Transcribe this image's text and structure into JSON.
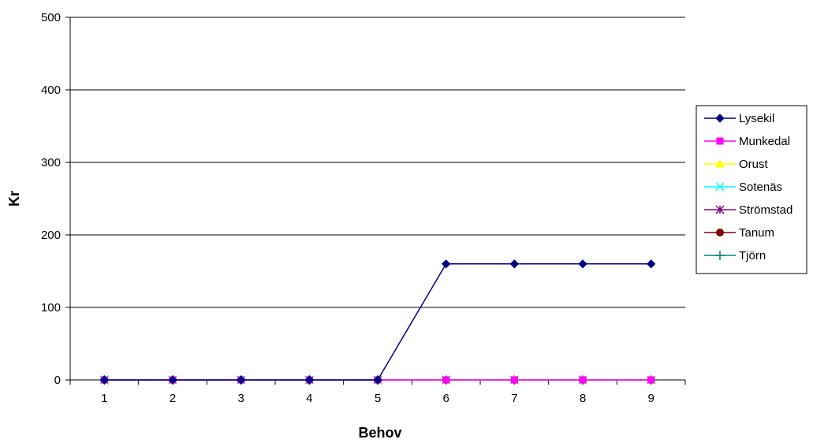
{
  "chart_data": {
    "type": "line",
    "title": "",
    "xlabel": "Behov",
    "ylabel": "Kr",
    "categories": [
      "1",
      "2",
      "3",
      "4",
      "5",
      "6",
      "7",
      "8",
      "9"
    ],
    "ylim": [
      0,
      500
    ],
    "yticks": [
      0,
      100,
      200,
      300,
      400,
      500
    ],
    "grid": "horizontal",
    "legend_position": "right",
    "series": [
      {
        "name": "Lysekil",
        "color": "#000080",
        "marker": "diamond",
        "values": [
          0,
          0,
          0,
          0,
          0,
          160,
          160,
          160,
          160
        ]
      },
      {
        "name": "Munkedal",
        "color": "#ff00ff",
        "marker": "square",
        "values": [
          0,
          0,
          0,
          0,
          0,
          0,
          0,
          0,
          0
        ]
      },
      {
        "name": "Orust",
        "color": "#ffff00",
        "marker": "triangle",
        "values": [
          0,
          0,
          0,
          0,
          0,
          0,
          0,
          0,
          0
        ]
      },
      {
        "name": "Sotenäs",
        "color": "#00ffff",
        "marker": "x",
        "values": [
          0,
          0,
          0,
          0,
          0,
          0,
          0,
          0,
          0
        ]
      },
      {
        "name": "Strömstad",
        "color": "#800080",
        "marker": "star",
        "values": [
          0,
          0,
          0,
          0,
          0,
          0,
          0,
          0,
          0
        ]
      },
      {
        "name": "Tanum",
        "color": "#800000",
        "marker": "circle",
        "values": [
          0,
          0,
          0,
          0,
          0,
          0,
          0,
          0,
          0
        ]
      },
      {
        "name": "Tjörn",
        "color": "#008080",
        "marker": "plus",
        "values": [
          0,
          0,
          0,
          0,
          0,
          0,
          0,
          0,
          0
        ]
      }
    ]
  }
}
